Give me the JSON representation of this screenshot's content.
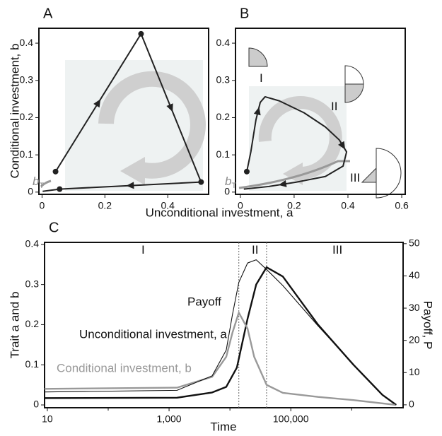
{
  "chart_data": [
    {
      "type": "line",
      "label": "A",
      "xlabel": "Unconditional investment, a",
      "ylabel": "Conditional investment, b",
      "xlim": [
        -0.01,
        0.53
      ],
      "ylim": [
        -0.006,
        0.44
      ],
      "xticks": [
        0,
        0.2,
        0.4
      ],
      "yticks": [
        0,
        0.1,
        0.2,
        0.3,
        0.4
      ],
      "series": [
        {
          "mode": "line",
          "color": "#222222",
          "x": [
            0.043,
            0.315,
            0.506,
            0.056,
            0.002
          ],
          "y": [
            0.055,
            0.425,
            0.027,
            0.008,
            0.002
          ]
        },
        {
          "mode": "points",
          "color": "#222222",
          "x": [
            0.043,
            0.315,
            0.506,
            0.056
          ],
          "y": [
            0.055,
            0.425,
            0.027,
            0.008
          ]
        }
      ],
      "annotations": [
        {
          "text": "b",
          "sub": "T"
        }
      ]
    },
    {
      "type": "line",
      "label": "B",
      "xlim": [
        -0.018,
        0.613
      ],
      "ylim": [
        -0.006,
        0.44
      ],
      "xticks": [
        0,
        0.2,
        0.4,
        0.6
      ],
      "yticks": [
        0,
        0.1,
        0.2,
        0.3,
        0.4
      ],
      "series": [
        {
          "mode": "line",
          "color": "#222222",
          "x": [
            0.024,
            0.039,
            0.058,
            0.074,
            0.092,
            0.145,
            0.237,
            0.316,
            0.368,
            0.395,
            0.382,
            0.316,
            0.21,
            0.105,
            0.013
          ],
          "y": [
            0.055,
            0.108,
            0.194,
            0.241,
            0.256,
            0.245,
            0.213,
            0.175,
            0.14,
            0.108,
            0.07,
            0.042,
            0.027,
            0.015,
            0.008
          ]
        },
        {
          "mode": "points",
          "color": "#222222",
          "x": [
            0.024
          ],
          "y": [
            0.055
          ]
        }
      ],
      "annotations": [
        {
          "text": "b",
          "sub": "T"
        },
        {
          "text": "I"
        },
        {
          "text": "II"
        },
        {
          "text": "III"
        }
      ]
    },
    {
      "type": "line",
      "label": "C",
      "xscale": "log",
      "xlabel": "Time",
      "ylabel": "Trait a and b",
      "y2label": "Payoff, P",
      "xlim": [
        9,
        7000000
      ],
      "xticks": [
        10,
        {
          "value": 1000,
          "label": "1,000"
        },
        {
          "value": 100000,
          "label": "100,000"
        }
      ],
      "xminor": [
        100,
        10000,
        1000000
      ],
      "ylim": [
        -0.007,
        0.405
      ],
      "yticks": [
        0,
        0.1,
        0.2,
        0.3,
        0.4
      ],
      "y2lim": [
        -0.9,
        50.4
      ],
      "y2ticks": [
        0,
        10,
        20,
        30,
        40,
        50
      ],
      "dividers": [
        14000,
        40000
      ],
      "series": [
        {
          "name": "Unconditional investment, a",
          "color": "#111111",
          "width": 2.4,
          "x": [
            9,
            1350,
            5100,
            8700,
            13000,
            19500,
            27000,
            40000,
            74000,
            280000,
            1070000,
            3200000,
            5400000
          ],
          "values": [
            0.017,
            0.018,
            0.031,
            0.045,
            0.093,
            0.215,
            0.3,
            0.343,
            0.32,
            0.2,
            0.1,
            0.025,
            0
          ]
        },
        {
          "name": "Conditional investment, b",
          "color": "#999999",
          "width": 2.4,
          "x": [
            9,
            1350,
            5100,
            8700,
            11000,
            14000,
            19500,
            25000,
            40000,
            74000,
            280000,
            1070000,
            5400000
          ],
          "values": [
            0.04,
            0.043,
            0.07,
            0.12,
            0.18,
            0.23,
            0.19,
            0.12,
            0.05,
            0.03,
            0.02,
            0.012,
            0
          ]
        },
        {
          "name": "Payoff",
          "color": "#111111",
          "width": 1.1,
          "axis": "y2",
          "x": [
            9,
            1350,
            5100,
            8700,
            11000,
            14000,
            19500,
            27000,
            40000,
            74000,
            280000,
            1070000,
            3200000,
            5400000
          ],
          "values": [
            4,
            4.5,
            9,
            17,
            28,
            38,
            44,
            45,
            42,
            37,
            24.5,
            12.5,
            3,
            0
          ]
        }
      ],
      "annotations": [
        {
          "text": "I"
        },
        {
          "text": "II"
        },
        {
          "text": "III"
        }
      ]
    }
  ]
}
